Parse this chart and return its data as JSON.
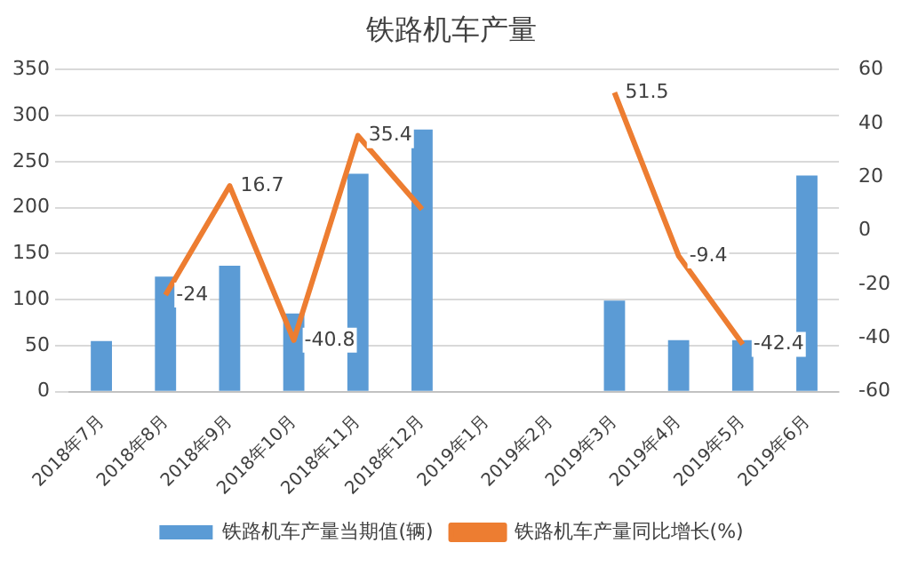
{
  "chart_data": {
    "type": "bar",
    "title": "铁路机车产量",
    "categories": [
      "2018年7月",
      "2018年8月",
      "2018年9月",
      "2018年10月",
      "2018年11月",
      "2018年12月",
      "2019年1月",
      "2019年2月",
      "2019年3月",
      "2019年4月",
      "2019年5月",
      "2019年6月"
    ],
    "series": [
      {
        "name": "铁路机车产量当期值(辆)",
        "color": "#5b9bd5",
        "values": [
          55,
          125,
          137,
          85,
          237,
          285,
          null,
          null,
          99,
          56,
          56,
          235
        ]
      },
      {
        "name": "铁路机车产量同比增长(%)",
        "type": "line",
        "axis": "y2",
        "color": "#ed7d31",
        "values": [
          null,
          -24,
          16.7,
          -40.8,
          35.4,
          8,
          null,
          null,
          51.5,
          -9.4,
          -42.4,
          null
        ],
        "value_labels": [
          null,
          "-24",
          "16.7",
          "-40.8",
          "35.4",
          null,
          null,
          null,
          "51.5",
          "-9.4",
          "-42.4",
          null
        ]
      }
    ],
    "ylim": [
      0,
      350
    ],
    "yticks": [
      0,
      50,
      100,
      150,
      200,
      250,
      300,
      350
    ],
    "y2lim": [
      -60,
      60
    ],
    "y2ticks": [
      -60,
      -40,
      -20,
      0,
      20,
      40,
      60
    ],
    "grid": "y",
    "legend": "bottom",
    "marker": "none"
  }
}
